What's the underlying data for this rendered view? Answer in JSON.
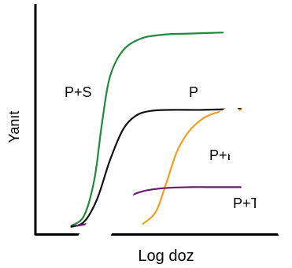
{
  "chart_data": {
    "type": "line",
    "title": "",
    "xlabel": "Log doz",
    "ylabel": "Yanıt",
    "x_scale": "log",
    "xlim": [
      0,
      10
    ],
    "ylim": [
      0,
      10
    ],
    "grid": false,
    "legend": "none",
    "series": [
      {
        "name": "P+S",
        "color": "#1f8a3a",
        "points": [
          [
            1.4,
            0.1
          ],
          [
            1.9,
            0.6
          ],
          [
            2.3,
            2.4
          ],
          [
            2.6,
            5.2
          ],
          [
            2.9,
            7.4
          ],
          [
            3.4,
            8.7
          ],
          [
            4.1,
            9.3
          ],
          [
            5.0,
            9.5
          ],
          [
            6.0,
            9.55
          ],
          [
            7.3,
            9.6
          ]
        ]
      },
      {
        "name": "P",
        "color": "#111111",
        "points": [
          [
            1.4,
            0.05
          ],
          [
            1.9,
            0.3
          ],
          [
            2.4,
            1.4
          ],
          [
            2.9,
            3.3
          ],
          [
            3.4,
            4.8
          ],
          [
            3.9,
            5.5
          ],
          [
            4.5,
            5.75
          ],
          [
            5.3,
            5.8
          ],
          [
            6.5,
            5.8
          ],
          [
            8.0,
            5.85
          ]
        ]
      },
      {
        "name": "P+R",
        "color": "#f0a020",
        "points": [
          [
            4.2,
            0.2
          ],
          [
            4.7,
            0.8
          ],
          [
            5.1,
            2.2
          ],
          [
            5.5,
            3.7
          ],
          [
            5.9,
            4.6
          ],
          [
            6.3,
            5.15
          ],
          [
            6.7,
            5.5
          ],
          [
            7.2,
            5.7
          ],
          [
            8.0,
            5.8
          ]
        ]
      },
      {
        "name": "P+T",
        "color": "#6a1a6e",
        "points": [
          [
            1.6,
            0.1
          ],
          [
            2.3,
            0.3
          ],
          [
            3.0,
            0.95
          ],
          [
            3.6,
            1.5
          ],
          [
            4.2,
            1.8
          ],
          [
            5.0,
            1.95
          ],
          [
            6.0,
            2.0
          ],
          [
            7.0,
            2.0
          ],
          [
            8.0,
            2.0
          ]
        ]
      }
    ],
    "label_text": {
      "ps": "P+S",
      "p": "P",
      "pr": "P+R",
      "pt": "P+T"
    },
    "watermark_color": "#ffffff"
  }
}
